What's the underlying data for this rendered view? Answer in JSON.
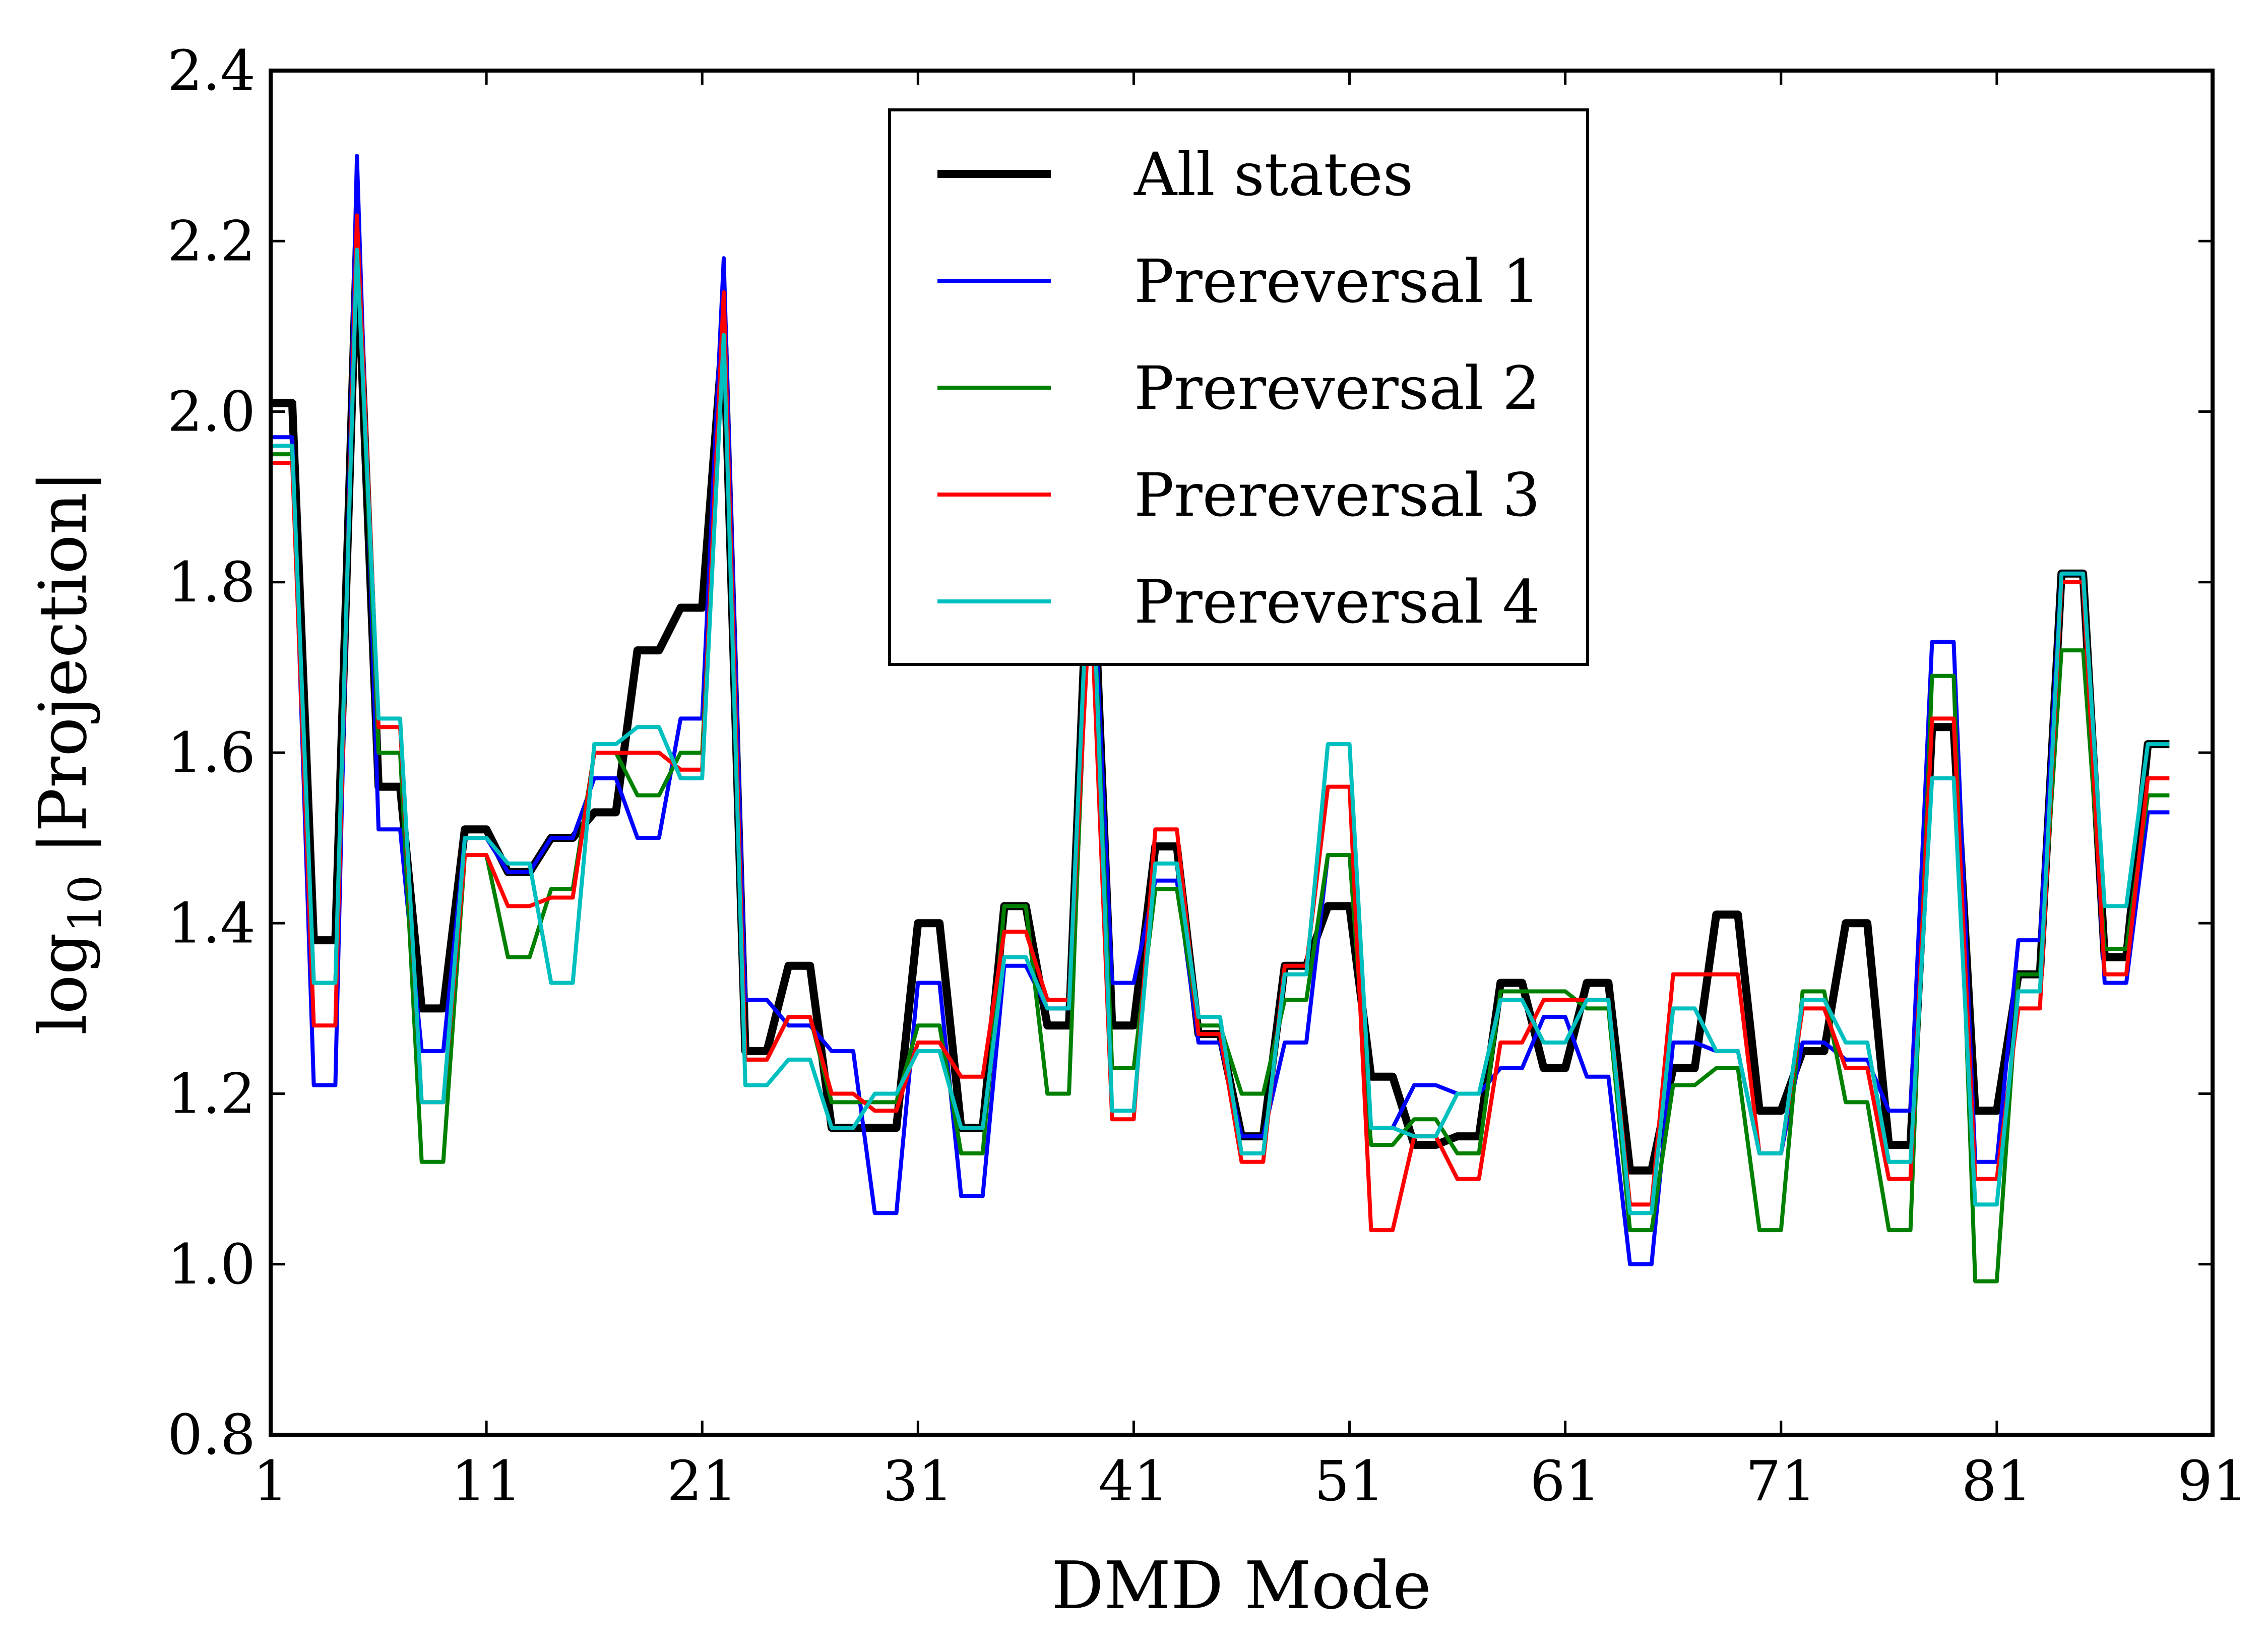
{
  "chart_data": {
    "type": "line",
    "title": "",
    "xlabel": "DMD Mode",
    "ylabel_parts": {
      "prefix": "log",
      "subscript": "10",
      "rest": " |Projection|"
    },
    "xlim": [
      1,
      91
    ],
    "ylim": [
      0.8,
      2.4
    ],
    "x_ticks": [
      1,
      11,
      21,
      31,
      41,
      51,
      61,
      71,
      81,
      91
    ],
    "y_ticks": [
      0.8,
      1.0,
      1.2,
      1.4,
      1.6,
      1.8,
      2.0,
      2.2,
      2.4
    ],
    "y_tick_labels": [
      "0.8",
      "1.0",
      "1.2",
      "1.4",
      "1.6",
      "1.8",
      "2.0",
      "2.2",
      "2.4"
    ],
    "grid": false,
    "legend_position": "top-center",
    "x": [
      1,
      2,
      3,
      4,
      5,
      6,
      7,
      8,
      9,
      10,
      11,
      12,
      13,
      14,
      15,
      16,
      17,
      18,
      19,
      20,
      21,
      22,
      23,
      24,
      25,
      26,
      27,
      28,
      29,
      30,
      31,
      32,
      33,
      34,
      35,
      36,
      37,
      38,
      39,
      40,
      41,
      42,
      43,
      44,
      45,
      46,
      47,
      48,
      49,
      50,
      51,
      52,
      53,
      54,
      55,
      56,
      57,
      58,
      59,
      60,
      61,
      62,
      63,
      64,
      65,
      66,
      67,
      68,
      69,
      70,
      71,
      72,
      73,
      74,
      75,
      76,
      77,
      78,
      79,
      80,
      81,
      82,
      83,
      84,
      85,
      86,
      87,
      88,
      89
    ],
    "series": [
      {
        "name": "All states",
        "color": "#000000",
        "width": 16,
        "values": [
          2.01,
          2.01,
          1.38,
          1.38,
          2.2,
          1.56,
          1.56,
          1.3,
          1.3,
          1.51,
          1.51,
          1.46,
          1.46,
          1.5,
          1.5,
          1.53,
          1.53,
          1.72,
          1.72,
          1.77,
          1.77,
          2.1,
          1.25,
          1.25,
          1.35,
          1.35,
          1.16,
          1.16,
          1.16,
          1.16,
          1.4,
          1.4,
          1.16,
          1.16,
          1.42,
          1.42,
          1.28,
          1.28,
          1.9,
          1.28,
          1.28,
          1.49,
          1.49,
          1.27,
          1.27,
          1.15,
          1.15,
          1.35,
          1.35,
          1.42,
          1.42,
          1.22,
          1.22,
          1.14,
          1.14,
          1.15,
          1.15,
          1.33,
          1.33,
          1.23,
          1.23,
          1.33,
          1.33,
          1.11,
          1.11,
          1.23,
          1.23,
          1.41,
          1.41,
          1.18,
          1.18,
          1.25,
          1.25,
          1.4,
          1.4,
          1.14,
          1.14,
          1.63,
          1.63,
          1.18,
          1.18,
          1.34,
          1.34,
          1.81,
          1.81,
          1.36,
          1.36,
          1.61,
          1.61
        ]
      },
      {
        "name": "Prereversal 1",
        "color": "#0000ff",
        "width": 8,
        "values": [
          1.97,
          1.97,
          1.21,
          1.21,
          2.3,
          1.51,
          1.51,
          1.25,
          1.25,
          1.5,
          1.5,
          1.46,
          1.46,
          1.5,
          1.5,
          1.57,
          1.57,
          1.5,
          1.5,
          1.64,
          1.64,
          2.18,
          1.31,
          1.31,
          1.28,
          1.28,
          1.25,
          1.25,
          1.06,
          1.06,
          1.33,
          1.33,
          1.08,
          1.08,
          1.35,
          1.35,
          1.3,
          1.3,
          1.88,
          1.33,
          1.33,
          1.45,
          1.45,
          1.26,
          1.26,
          1.15,
          1.15,
          1.26,
          1.26,
          1.48,
          1.48,
          1.16,
          1.16,
          1.21,
          1.21,
          1.2,
          1.2,
          1.23,
          1.23,
          1.29,
          1.29,
          1.22,
          1.22,
          1.0,
          1.0,
          1.26,
          1.26,
          1.25,
          1.25,
          1.13,
          1.13,
          1.26,
          1.26,
          1.24,
          1.24,
          1.18,
          1.18,
          1.73,
          1.73,
          1.12,
          1.12,
          1.38,
          1.38,
          1.81,
          1.81,
          1.33,
          1.33,
          1.53,
          1.53
        ]
      },
      {
        "name": "Prereversal 2",
        "color": "#008000",
        "width": 8,
        "values": [
          1.95,
          1.95,
          1.33,
          1.33,
          2.2,
          1.6,
          1.6,
          1.12,
          1.12,
          1.48,
          1.48,
          1.36,
          1.36,
          1.44,
          1.44,
          1.6,
          1.6,
          1.55,
          1.55,
          1.6,
          1.6,
          2.09,
          1.24,
          1.24,
          1.29,
          1.29,
          1.19,
          1.19,
          1.19,
          1.19,
          1.28,
          1.28,
          1.13,
          1.13,
          1.42,
          1.42,
          1.2,
          1.2,
          1.87,
          1.23,
          1.23,
          1.44,
          1.44,
          1.28,
          1.28,
          1.2,
          1.2,
          1.31,
          1.31,
          1.48,
          1.48,
          1.14,
          1.14,
          1.17,
          1.17,
          1.13,
          1.13,
          1.32,
          1.32,
          1.32,
          1.32,
          1.3,
          1.3,
          1.04,
          1.04,
          1.21,
          1.21,
          1.23,
          1.23,
          1.04,
          1.04,
          1.32,
          1.32,
          1.19,
          1.19,
          1.04,
          1.04,
          1.69,
          1.69,
          0.98,
          0.98,
          1.34,
          1.34,
          1.72,
          1.72,
          1.37,
          1.37,
          1.55,
          1.55
        ]
      },
      {
        "name": "Prereversal 3",
        "color": "#ff0000",
        "width": 8,
        "values": [
          1.94,
          1.94,
          1.28,
          1.28,
          2.23,
          1.63,
          1.63,
          1.19,
          1.19,
          1.48,
          1.48,
          1.42,
          1.42,
          1.43,
          1.43,
          1.6,
          1.6,
          1.6,
          1.6,
          1.58,
          1.58,
          2.14,
          1.24,
          1.24,
          1.29,
          1.29,
          1.2,
          1.2,
          1.18,
          1.18,
          1.26,
          1.26,
          1.22,
          1.22,
          1.39,
          1.39,
          1.31,
          1.31,
          1.79,
          1.17,
          1.17,
          1.51,
          1.51,
          1.27,
          1.27,
          1.12,
          1.12,
          1.35,
          1.35,
          1.56,
          1.56,
          1.04,
          1.04,
          1.15,
          1.15,
          1.1,
          1.1,
          1.26,
          1.26,
          1.31,
          1.31,
          1.31,
          1.31,
          1.07,
          1.07,
          1.34,
          1.34,
          1.34,
          1.34,
          1.13,
          1.13,
          1.3,
          1.3,
          1.23,
          1.23,
          1.1,
          1.1,
          1.64,
          1.64,
          1.1,
          1.1,
          1.3,
          1.3,
          1.8,
          1.8,
          1.34,
          1.34,
          1.57,
          1.57
        ]
      },
      {
        "name": "Prereversal 4",
        "color": "#00bfbf",
        "width": 8,
        "values": [
          1.96,
          1.96,
          1.33,
          1.33,
          2.19,
          1.64,
          1.64,
          1.19,
          1.19,
          1.5,
          1.5,
          1.47,
          1.47,
          1.33,
          1.33,
          1.61,
          1.61,
          1.63,
          1.63,
          1.57,
          1.57,
          2.09,
          1.21,
          1.21,
          1.24,
          1.24,
          1.16,
          1.16,
          1.2,
          1.2,
          1.25,
          1.25,
          1.16,
          1.16,
          1.36,
          1.36,
          1.3,
          1.3,
          1.88,
          1.18,
          1.18,
          1.47,
          1.47,
          1.29,
          1.29,
          1.13,
          1.13,
          1.34,
          1.34,
          1.61,
          1.61,
          1.16,
          1.16,
          1.15,
          1.15,
          1.2,
          1.2,
          1.31,
          1.31,
          1.26,
          1.26,
          1.31,
          1.31,
          1.06,
          1.06,
          1.3,
          1.3,
          1.25,
          1.25,
          1.13,
          1.13,
          1.31,
          1.31,
          1.26,
          1.26,
          1.12,
          1.12,
          1.57,
          1.57,
          1.07,
          1.07,
          1.32,
          1.32,
          1.81,
          1.81,
          1.42,
          1.42,
          1.61,
          1.61
        ]
      }
    ]
  }
}
